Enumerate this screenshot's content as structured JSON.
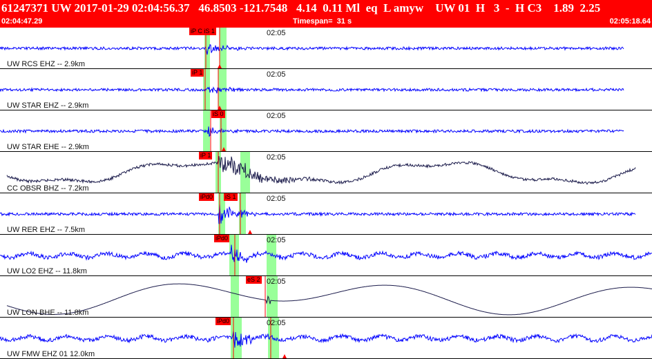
{
  "header": {
    "event_line": "61247371 UW 2017-01-29 02:04:56.37   46.8503 -121.7548   4.14  0.11 Ml  eq  L amyw    UW 01  H   3  -  H C3    1.89  2.25",
    "start_time": "02:04:47.29",
    "timespan": "Timespan=  31 s",
    "end_time": "02:05:18.64"
  },
  "colors": {
    "header_bg": "#ff0000",
    "trace_blue": "#0000ff",
    "trace_dark": "#1a1a4a",
    "window_green": "#99ff99",
    "pick_red": "#ff0000"
  },
  "traces": [
    {
      "label": "UW RCS EHZ -- 2.9km",
      "time_mark": "02:05",
      "style": "blue",
      "picks": [
        "iP C iS 1"
      ]
    },
    {
      "label": "UW STAR EHZ -- 2.9km",
      "time_mark": "02:05",
      "style": "blue",
      "picks": [
        "iP 1"
      ]
    },
    {
      "label": "UW STAR EHE -- 2.9km",
      "time_mark": "02:05",
      "style": "blue",
      "picks": [
        "iS 0"
      ]
    },
    {
      "label": "CC OBSR BHZ -- 7.2km",
      "time_mark": "02:05",
      "style": "dark",
      "picks": [
        "iP 1"
      ]
    },
    {
      "label": "UW RER EHZ -- 7.5km",
      "time_mark": "02:05",
      "style": "blue",
      "picks": [
        "iPd0",
        "iS 1"
      ]
    },
    {
      "label": "UW LO2 EHZ -- 11.8km",
      "time_mark": "02:05",
      "style": "blue",
      "picks": [
        "iPd0"
      ]
    },
    {
      "label": "UW LON BHE -- 11.8km",
      "time_mark": "02:05",
      "style": "dark",
      "picks": [
        "eS 2"
      ]
    },
    {
      "label": "UW FMW EHZ 01 12.0km",
      "time_mark": "02:05",
      "style": "blue",
      "picks": [
        "iPd0"
      ]
    }
  ]
}
